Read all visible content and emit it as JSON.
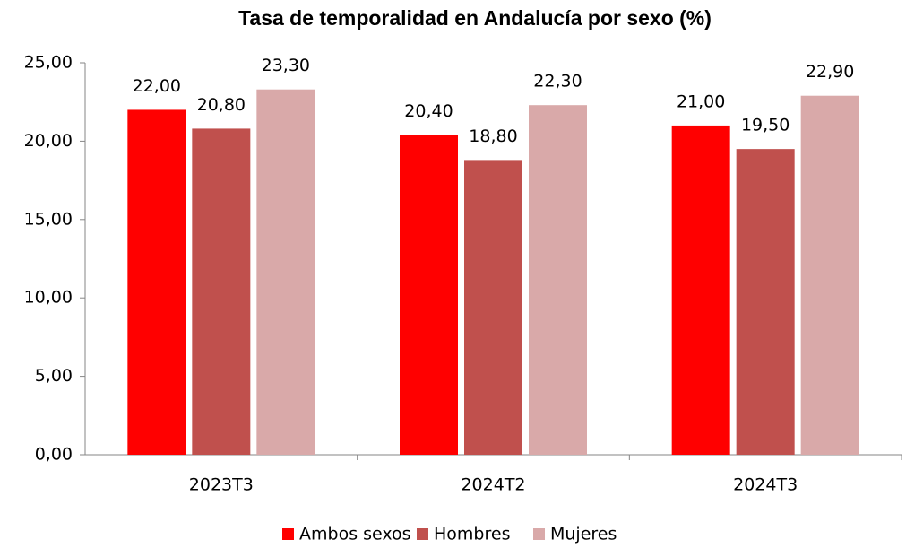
{
  "chart_data": {
    "type": "bar",
    "title": "Tasa de temporalidad en Andalucía por sexo (%)",
    "categories": [
      "2023T3",
      "2024T2",
      "2024T3"
    ],
    "series": [
      {
        "name": "Ambos sexos",
        "color": "#ff0000",
        "values": [
          22.0,
          20.4,
          21.0
        ],
        "value_labels": [
          "22,00",
          "20,40",
          "21,00"
        ]
      },
      {
        "name": "Hombres",
        "color": "#c0504d",
        "values": [
          20.8,
          18.8,
          19.5
        ],
        "value_labels": [
          "20,80",
          "18,80",
          "19,50"
        ]
      },
      {
        "name": "Mujeres",
        "color": "#d9a9a9",
        "values": [
          23.3,
          22.3,
          22.9
        ],
        "value_labels": [
          "23,30",
          "22,30",
          "22,90"
        ]
      }
    ],
    "ylim": [
      0,
      25
    ],
    "yticks": [
      {
        "value": 0,
        "label": "0,00"
      },
      {
        "value": 5,
        "label": "5,00"
      },
      {
        "value": 10,
        "label": "10,00"
      },
      {
        "value": 15,
        "label": "15,00"
      },
      {
        "value": 20,
        "label": "20,00"
      },
      {
        "value": 25,
        "label": "25,00"
      }
    ],
    "legend": "bottom",
    "grid": false
  }
}
